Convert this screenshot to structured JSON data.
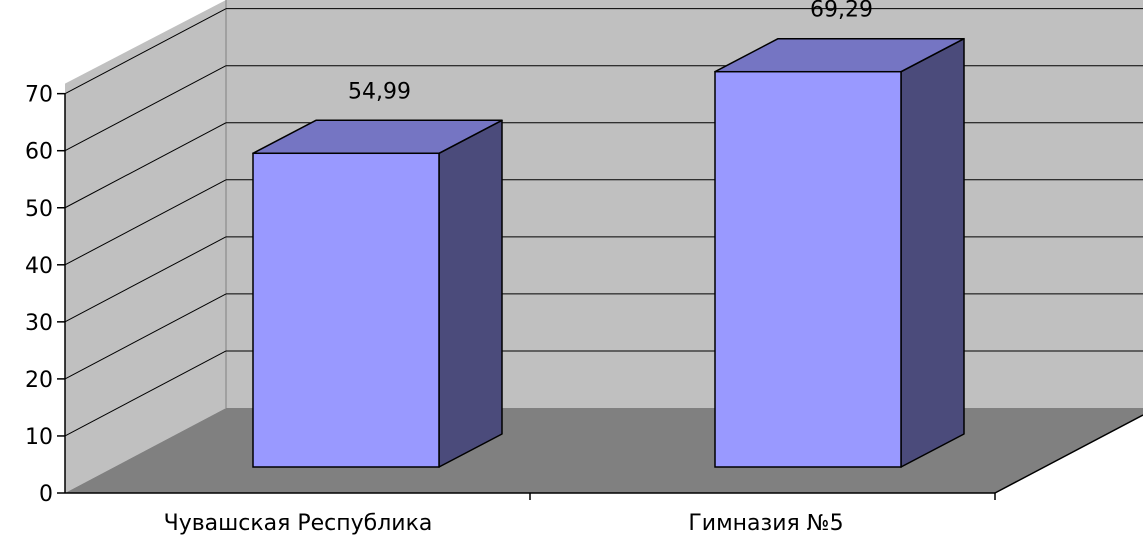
{
  "chart_data": {
    "type": "bar",
    "style": "3d-column",
    "categories": [
      "Чувашская Республика",
      "Гимназия №5"
    ],
    "values": [
      54.99,
      69.29
    ],
    "data_labels": [
      "54,99",
      "69,29"
    ],
    "y_ticks": [
      "0",
      "10",
      "20",
      "30",
      "40",
      "50",
      "60",
      "70"
    ],
    "ylim": [
      0,
      70
    ],
    "grid": true,
    "legend": "none",
    "colors": {
      "bar_front": "#9999ff",
      "bar_top": "#7575c3",
      "bar_side": "#4b4b7b",
      "back_wall": "#c0c0c0",
      "side_wall": "#c0c0c0",
      "floor": "#808080",
      "gridline": "#000000"
    }
  }
}
